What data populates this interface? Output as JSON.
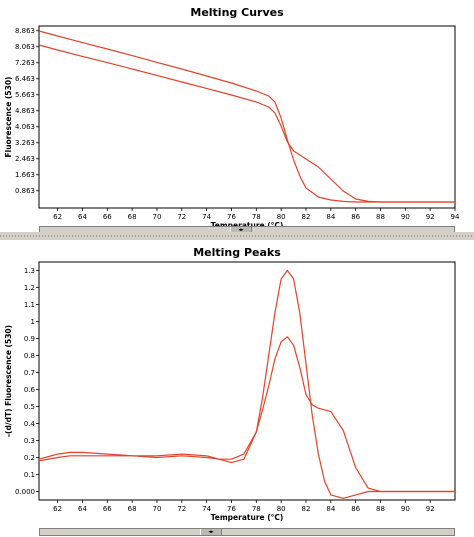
{
  "chart_data": [
    {
      "type": "line",
      "title": "Melting Curves",
      "xlabel": "Temperature (°C)",
      "ylabel": "Fluorescence (530)",
      "xlim": [
        60.5,
        94
      ],
      "ylim": [
        0,
        9.1
      ],
      "x_ticks": [
        "62",
        "64",
        "66",
        "68",
        "70",
        "72",
        "74",
        "76",
        "78",
        "80",
        "82",
        "84",
        "86",
        "88",
        "90",
        "92",
        "94"
      ],
      "y_ticks": [
        "8.863",
        "8.063",
        "7.263",
        "6.463",
        "5.663",
        "4.863",
        "4.063",
        "3.263",
        "2.463",
        "1.663",
        "0.863"
      ],
      "grid": false,
      "legend": "none",
      "colors": [
        "#e4432b",
        "#e4432b"
      ],
      "series": [
        {
          "x": [
            60.5,
            62,
            64,
            66,
            68,
            70,
            72,
            74,
            76,
            78,
            79,
            79.5,
            80,
            80.5,
            81,
            81.5,
            82,
            83,
            84,
            85,
            86,
            87,
            88,
            90,
            92,
            94
          ],
          "values": [
            8.85,
            8.6,
            8.27,
            7.95,
            7.62,
            7.28,
            6.95,
            6.6,
            6.25,
            5.85,
            5.6,
            5.3,
            4.5,
            3.4,
            2.4,
            1.6,
            1.0,
            0.55,
            0.4,
            0.33,
            0.3,
            0.3,
            0.3,
            0.3,
            0.3,
            0.3
          ]
        },
        {
          "x": [
            60.5,
            62,
            64,
            66,
            68,
            70,
            72,
            74,
            76,
            78,
            79,
            79.5,
            80,
            80.5,
            81,
            82,
            83,
            84,
            85,
            86,
            87,
            88,
            90,
            92,
            94
          ],
          "values": [
            8.15,
            7.9,
            7.58,
            7.27,
            6.95,
            6.63,
            6.3,
            5.98,
            5.65,
            5.3,
            5.05,
            4.75,
            4.1,
            3.3,
            2.85,
            2.45,
            2.05,
            1.45,
            0.85,
            0.45,
            0.33,
            0.3,
            0.3,
            0.3,
            0.3
          ]
        }
      ]
    },
    {
      "type": "line",
      "title": "Melting Peaks",
      "xlabel": "Temperature (°C)",
      "ylabel": "-(d/dT) Fluorescence (530)",
      "xlim": [
        60.5,
        94
      ],
      "ylim": [
        -0.05,
        1.35
      ],
      "x_ticks": [
        "62",
        "64",
        "66",
        "68",
        "70",
        "72",
        "74",
        "76",
        "78",
        "80",
        "82",
        "84",
        "86",
        "88",
        "90",
        "92"
      ],
      "y_ticks": [
        "1.3",
        "1.2",
        "1.1",
        "1",
        "0.9",
        "0.8",
        "0.7",
        "0.6",
        "0.5",
        "0.4",
        "0.3",
        "0.2",
        "0.1",
        "0.000"
      ],
      "grid": false,
      "legend": "none",
      "colors": [
        "#e4432b",
        "#e4432b"
      ],
      "series": [
        {
          "x": [
            60.5,
            61,
            62,
            63,
            64,
            66,
            68,
            70,
            72,
            74,
            75,
            76,
            77,
            78,
            78.5,
            79,
            79.5,
            80,
            80.5,
            81,
            81.5,
            82,
            82.5,
            83,
            83.5,
            84,
            85,
            86,
            87,
            88,
            90,
            94
          ],
          "values": [
            0.19,
            0.2,
            0.22,
            0.23,
            0.23,
            0.22,
            0.21,
            0.21,
            0.22,
            0.21,
            0.19,
            0.17,
            0.19,
            0.35,
            0.55,
            0.8,
            1.05,
            1.25,
            1.3,
            1.25,
            1.05,
            0.75,
            0.45,
            0.22,
            0.06,
            -0.02,
            -0.04,
            -0.02,
            0.0,
            0.0,
            0.0,
            0.0
          ]
        },
        {
          "x": [
            60.5,
            62,
            63,
            64,
            66,
            68,
            70,
            72,
            74,
            75,
            76,
            77,
            78,
            78.5,
            79,
            79.5,
            80,
            80.5,
            81,
            81.5,
            82,
            82.5,
            83,
            84,
            85,
            86,
            87,
            88,
            90,
            94
          ],
          "values": [
            0.18,
            0.2,
            0.21,
            0.21,
            0.21,
            0.21,
            0.2,
            0.21,
            0.2,
            0.19,
            0.19,
            0.22,
            0.35,
            0.48,
            0.62,
            0.78,
            0.88,
            0.91,
            0.86,
            0.73,
            0.57,
            0.51,
            0.49,
            0.47,
            0.36,
            0.14,
            0.02,
            0.0,
            0.0,
            0.0
          ]
        }
      ]
    }
  ]
}
